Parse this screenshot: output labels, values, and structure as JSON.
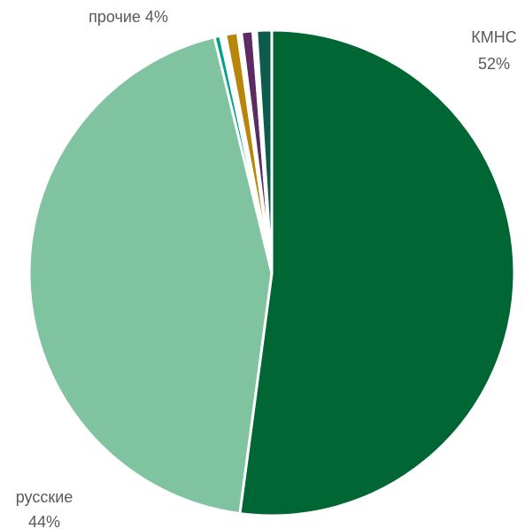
{
  "chart_data": {
    "type": "pie",
    "title": "",
    "slices": [
      {
        "label": "КМНС",
        "value": 52,
        "color": "#006633",
        "value_text": "52%"
      },
      {
        "label": "русские",
        "value": 44,
        "color": "#7fc3a0",
        "value_text": "44%"
      },
      {
        "label": "",
        "value": 0.4,
        "color": "#00a08a"
      },
      {
        "label": "",
        "value": 0.35,
        "color": "#ffffff"
      },
      {
        "label": "",
        "value": 0.8,
        "color": "#b8860b"
      },
      {
        "label": "",
        "value": 0.25,
        "color": "#ffffff"
      },
      {
        "label": "",
        "value": 0.75,
        "color": "#5b2b64"
      },
      {
        "label": "",
        "value": 0.25,
        "color": "#ffffff"
      },
      {
        "label": "",
        "value": 1.0,
        "color": "#0d5c4b"
      }
    ],
    "group_label": "прочие 4%",
    "legend": "none"
  }
}
